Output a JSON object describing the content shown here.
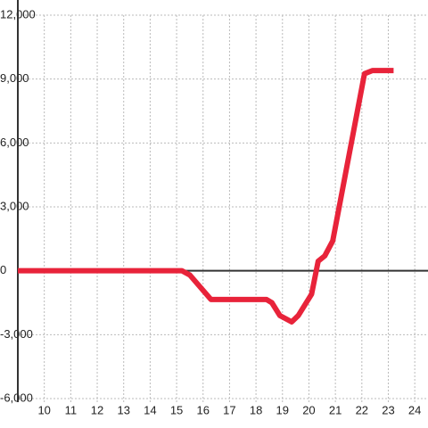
{
  "chart_data": {
    "type": "line",
    "x": [
      9,
      15.2,
      15.5,
      16.3,
      18.4,
      18.6,
      18.9,
      19.35,
      19.6,
      20.1,
      20.35,
      20.6,
      20.9,
      22.1,
      22.4,
      23.2
    ],
    "series": [
      {
        "color": "#e8233a",
        "values": [
          0,
          0,
          -200,
          -1350,
          -1350,
          -1500,
          -2100,
          -2400,
          -2100,
          -1100,
          450,
          700,
          1400,
          9250,
          9400,
          9400
        ]
      }
    ],
    "xlim": [
      9,
      24.5
    ],
    "xticks": [
      10,
      11,
      12,
      13,
      14,
      15,
      16,
      17,
      18,
      19,
      20,
      21,
      22,
      23,
      24
    ],
    "ylim": [
      -6000,
      12000
    ],
    "yticks": [
      {
        "value": -6000,
        "label": "-6,000"
      },
      {
        "value": -3000,
        "label": "-3,000"
      },
      0,
      {
        "value": 3000,
        "label": "3,000"
      },
      {
        "value": 6000,
        "label": "6,000"
      },
      {
        "value": 9000,
        "label": "9,000"
      },
      {
        "value": 12000,
        "label": "12,000"
      }
    ],
    "grid": true
  }
}
